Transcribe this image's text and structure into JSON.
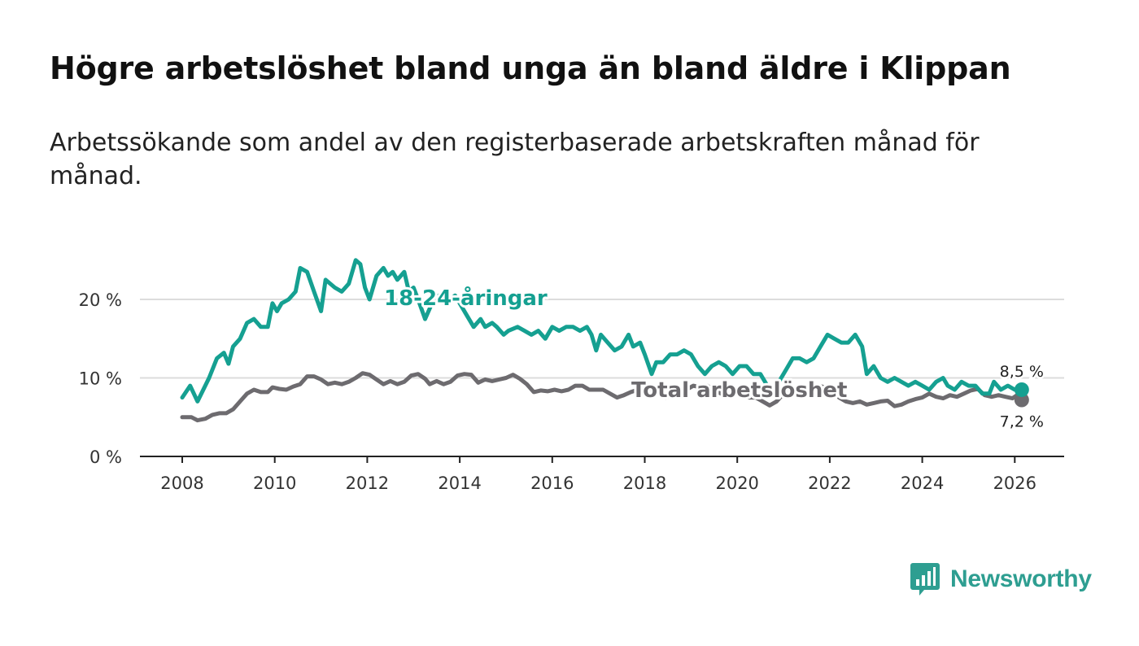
{
  "title": "Högre arbetslöshet bland unga än bland äldre i Klippan",
  "subtitle": "Arbetssökande som andel av den registerbaserade arbetskraften månad för månad.",
  "brand": {
    "name": "Newsworthy",
    "color": "#2e9e91"
  },
  "colors": {
    "young": "#15a091",
    "total": "#6d6b6f",
    "grid": "#dcdcdc",
    "axis": "#222222"
  },
  "chart_data": {
    "type": "line",
    "title": "Högre arbetslöshet bland unga än bland äldre i Klippan",
    "xlabel": "",
    "ylabel": "",
    "xlim": [
      2007.1,
      2027.0
    ],
    "ylim": [
      0,
      27
    ],
    "x_ticks": [
      2008,
      2010,
      2012,
      2014,
      2016,
      2018,
      2020,
      2022,
      2024,
      2026
    ],
    "x_tick_labels": [
      "2008",
      "2010",
      "2012",
      "2014",
      "2016",
      "2018",
      "2020",
      "2022",
      "2024",
      "2026"
    ],
    "y_ticks": [
      0,
      10,
      20
    ],
    "y_tick_labels": [
      "0 %",
      "10 %",
      "20 %"
    ],
    "grid": true,
    "series": [
      {
        "name": "18-24-åringar",
        "end_label": "8,5 %",
        "points": [
          [
            2008.0,
            7.5
          ],
          [
            2008.17,
            9.0
          ],
          [
            2008.33,
            7.0
          ],
          [
            2008.58,
            10.0
          ],
          [
            2008.75,
            12.5
          ],
          [
            2008.9,
            13.2
          ],
          [
            2009.0,
            11.8
          ],
          [
            2009.1,
            14.0
          ],
          [
            2009.25,
            15.0
          ],
          [
            2009.4,
            17.0
          ],
          [
            2009.55,
            17.5
          ],
          [
            2009.7,
            16.5
          ],
          [
            2009.85,
            16.5
          ],
          [
            2009.95,
            19.5
          ],
          [
            2010.05,
            18.5
          ],
          [
            2010.15,
            19.5
          ],
          [
            2010.3,
            20.0
          ],
          [
            2010.45,
            21.0
          ],
          [
            2010.55,
            24.0
          ],
          [
            2010.7,
            23.5
          ],
          [
            2010.85,
            21.0
          ],
          [
            2011.0,
            18.5
          ],
          [
            2011.1,
            22.5
          ],
          [
            2011.3,
            21.5
          ],
          [
            2011.45,
            21.0
          ],
          [
            2011.6,
            22.0
          ],
          [
            2011.75,
            25.0
          ],
          [
            2011.85,
            24.5
          ],
          [
            2011.95,
            21.5
          ],
          [
            2012.05,
            20.0
          ],
          [
            2012.2,
            23.0
          ],
          [
            2012.35,
            24.0
          ],
          [
            2012.45,
            23.0
          ],
          [
            2012.55,
            23.5
          ],
          [
            2012.65,
            22.5
          ],
          [
            2012.8,
            23.5
          ],
          [
            2012.9,
            21.0
          ],
          [
            2013.0,
            21.5
          ],
          [
            2013.1,
            20.0
          ],
          [
            2013.25,
            17.5
          ],
          [
            2013.4,
            19.5
          ],
          [
            2013.55,
            20.5
          ],
          [
            2013.65,
            19.5
          ],
          [
            2013.8,
            20.0
          ],
          [
            2013.9,
            20.5
          ],
          [
            2014.0,
            19.5
          ],
          [
            2014.15,
            18.0
          ],
          [
            2014.3,
            16.5
          ],
          [
            2014.45,
            17.5
          ],
          [
            2014.55,
            16.5
          ],
          [
            2014.7,
            17.0
          ],
          [
            2014.8,
            16.5
          ],
          [
            2014.95,
            15.5
          ],
          [
            2015.05,
            16.0
          ],
          [
            2015.25,
            16.5
          ],
          [
            2015.4,
            16.0
          ],
          [
            2015.55,
            15.5
          ],
          [
            2015.7,
            16.0
          ],
          [
            2015.85,
            15.0
          ],
          [
            2016.0,
            16.5
          ],
          [
            2016.15,
            16.0
          ],
          [
            2016.3,
            16.5
          ],
          [
            2016.45,
            16.5
          ],
          [
            2016.6,
            16.0
          ],
          [
            2016.75,
            16.5
          ],
          [
            2016.85,
            15.5
          ],
          [
            2016.95,
            13.5
          ],
          [
            2017.05,
            15.5
          ],
          [
            2017.2,
            14.5
          ],
          [
            2017.35,
            13.5
          ],
          [
            2017.5,
            14.0
          ],
          [
            2017.65,
            15.5
          ],
          [
            2017.75,
            14.0
          ],
          [
            2017.9,
            14.5
          ],
          [
            2018.0,
            13.0
          ],
          [
            2018.15,
            10.5
          ],
          [
            2018.25,
            12.0
          ],
          [
            2018.4,
            12.0
          ],
          [
            2018.55,
            13.0
          ],
          [
            2018.7,
            13.0
          ],
          [
            2018.85,
            13.5
          ],
          [
            2019.0,
            13.0
          ],
          [
            2019.15,
            11.5
          ],
          [
            2019.3,
            10.5
          ],
          [
            2019.45,
            11.5
          ],
          [
            2019.6,
            12.0
          ],
          [
            2019.75,
            11.5
          ],
          [
            2019.9,
            10.5
          ],
          [
            2020.05,
            11.5
          ],
          [
            2020.2,
            11.5
          ],
          [
            2020.35,
            10.5
          ],
          [
            2020.5,
            10.5
          ],
          [
            2020.65,
            9.0
          ],
          [
            2020.8,
            8.5
          ],
          [
            2020.95,
            10.0
          ],
          [
            2021.05,
            11.0
          ],
          [
            2021.2,
            12.5
          ],
          [
            2021.35,
            12.5
          ],
          [
            2021.5,
            12.0
          ],
          [
            2021.65,
            12.5
          ],
          [
            2021.8,
            14.0
          ],
          [
            2021.95,
            15.5
          ],
          [
            2022.1,
            15.0
          ],
          [
            2022.25,
            14.5
          ],
          [
            2022.4,
            14.5
          ],
          [
            2022.55,
            15.5
          ],
          [
            2022.7,
            14.0
          ],
          [
            2022.8,
            10.5
          ],
          [
            2022.95,
            11.5
          ],
          [
            2023.1,
            10.0
          ],
          [
            2023.25,
            9.5
          ],
          [
            2023.4,
            10.0
          ],
          [
            2023.55,
            9.5
          ],
          [
            2023.7,
            9.0
          ],
          [
            2023.85,
            9.5
          ],
          [
            2024.0,
            9.0
          ],
          [
            2024.15,
            8.5
          ],
          [
            2024.3,
            9.5
          ],
          [
            2024.45,
            10.0
          ],
          [
            2024.55,
            9.0
          ],
          [
            2024.7,
            8.5
          ],
          [
            2024.85,
            9.5
          ],
          [
            2025.0,
            9.0
          ],
          [
            2025.15,
            9.0
          ],
          [
            2025.3,
            8.0
          ],
          [
            2025.45,
            8.0
          ],
          [
            2025.55,
            9.5
          ],
          [
            2025.7,
            8.5
          ],
          [
            2025.85,
            9.0
          ],
          [
            2026.0,
            8.5
          ],
          [
            2026.15,
            8.5
          ]
        ]
      },
      {
        "name": "Total arbetslöshet",
        "end_label": "7,2 %",
        "points": [
          [
            2008.0,
            5.0
          ],
          [
            2008.2,
            5.0
          ],
          [
            2008.33,
            4.6
          ],
          [
            2008.5,
            4.8
          ],
          [
            2008.65,
            5.3
          ],
          [
            2008.8,
            5.5
          ],
          [
            2008.95,
            5.5
          ],
          [
            2009.1,
            6.0
          ],
          [
            2009.25,
            7.0
          ],
          [
            2009.4,
            8.0
          ],
          [
            2009.55,
            8.5
          ],
          [
            2009.7,
            8.2
          ],
          [
            2009.85,
            8.2
          ],
          [
            2009.95,
            8.8
          ],
          [
            2010.1,
            8.6
          ],
          [
            2010.25,
            8.5
          ],
          [
            2010.4,
            8.9
          ],
          [
            2010.55,
            9.2
          ],
          [
            2010.7,
            10.2
          ],
          [
            2010.85,
            10.2
          ],
          [
            2011.0,
            9.8
          ],
          [
            2011.15,
            9.2
          ],
          [
            2011.3,
            9.4
          ],
          [
            2011.45,
            9.2
          ],
          [
            2011.6,
            9.5
          ],
          [
            2011.75,
            10.0
          ],
          [
            2011.9,
            10.6
          ],
          [
            2012.05,
            10.4
          ],
          [
            2012.2,
            9.8
          ],
          [
            2012.35,
            9.2
          ],
          [
            2012.5,
            9.6
          ],
          [
            2012.65,
            9.2
          ],
          [
            2012.8,
            9.5
          ],
          [
            2012.95,
            10.3
          ],
          [
            2013.1,
            10.5
          ],
          [
            2013.25,
            9.9
          ],
          [
            2013.35,
            9.2
          ],
          [
            2013.5,
            9.6
          ],
          [
            2013.65,
            9.2
          ],
          [
            2013.8,
            9.5
          ],
          [
            2013.95,
            10.3
          ],
          [
            2014.1,
            10.5
          ],
          [
            2014.25,
            10.4
          ],
          [
            2014.4,
            9.4
          ],
          [
            2014.55,
            9.8
          ],
          [
            2014.7,
            9.6
          ],
          [
            2014.85,
            9.8
          ],
          [
            2015.0,
            10.0
          ],
          [
            2015.15,
            10.4
          ],
          [
            2015.3,
            9.9
          ],
          [
            2015.45,
            9.2
          ],
          [
            2015.6,
            8.2
          ],
          [
            2015.75,
            8.4
          ],
          [
            2015.9,
            8.3
          ],
          [
            2016.05,
            8.5
          ],
          [
            2016.2,
            8.3
          ],
          [
            2016.35,
            8.5
          ],
          [
            2016.5,
            9.0
          ],
          [
            2016.65,
            9.0
          ],
          [
            2016.8,
            8.5
          ],
          [
            2016.95,
            8.5
          ],
          [
            2017.1,
            8.5
          ],
          [
            2017.25,
            8.0
          ],
          [
            2017.4,
            7.5
          ],
          [
            2017.55,
            7.8
          ],
          [
            2017.7,
            8.2
          ],
          [
            2017.85,
            8.5
          ],
          [
            2018.0,
            8.7
          ],
          [
            2018.15,
            8.5
          ],
          [
            2018.3,
            8.2
          ],
          [
            2018.45,
            7.5
          ],
          [
            2018.6,
            7.8
          ],
          [
            2018.75,
            8.0
          ],
          [
            2018.9,
            8.5
          ],
          [
            2019.05,
            9.0
          ],
          [
            2019.2,
            8.8
          ],
          [
            2019.35,
            9.0
          ],
          [
            2019.5,
            8.5
          ],
          [
            2019.65,
            8.0
          ],
          [
            2019.8,
            8.2
          ],
          [
            2019.95,
            8.5
          ],
          [
            2020.1,
            8.0
          ],
          [
            2020.25,
            7.5
          ],
          [
            2020.4,
            7.5
          ],
          [
            2020.55,
            7.0
          ],
          [
            2020.7,
            6.5
          ],
          [
            2020.85,
            7.0
          ],
          [
            2021.0,
            8.0
          ],
          [
            2021.15,
            8.2
          ],
          [
            2021.3,
            8.5
          ],
          [
            2021.45,
            8.0
          ],
          [
            2021.6,
            8.5
          ],
          [
            2021.75,
            9.0
          ],
          [
            2021.9,
            8.8
          ],
          [
            2022.05,
            8.5
          ],
          [
            2022.2,
            7.5
          ],
          [
            2022.35,
            7.0
          ],
          [
            2022.5,
            6.8
          ],
          [
            2022.65,
            7.0
          ],
          [
            2022.8,
            6.6
          ],
          [
            2022.95,
            6.8
          ],
          [
            2023.1,
            7.0
          ],
          [
            2023.25,
            7.1
          ],
          [
            2023.4,
            6.4
          ],
          [
            2023.55,
            6.6
          ],
          [
            2023.7,
            7.0
          ],
          [
            2023.85,
            7.3
          ],
          [
            2024.0,
            7.5
          ],
          [
            2024.15,
            8.0
          ],
          [
            2024.3,
            7.6
          ],
          [
            2024.45,
            7.4
          ],
          [
            2024.6,
            7.8
          ],
          [
            2024.75,
            7.6
          ],
          [
            2024.9,
            8.0
          ],
          [
            2025.05,
            8.4
          ],
          [
            2025.2,
            8.6
          ],
          [
            2025.35,
            7.8
          ],
          [
            2025.5,
            7.6
          ],
          [
            2025.65,
            7.8
          ],
          [
            2025.8,
            7.6
          ],
          [
            2025.95,
            7.4
          ],
          [
            2026.05,
            7.8
          ],
          [
            2026.15,
            7.2
          ]
        ]
      }
    ]
  }
}
